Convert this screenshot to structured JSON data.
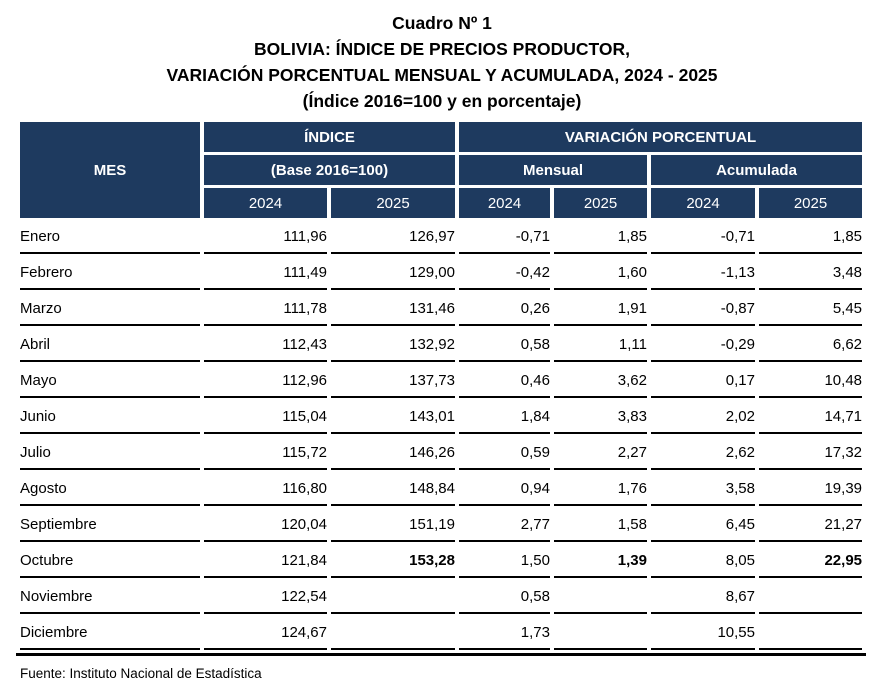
{
  "title": {
    "line1": "Cuadro Nº 1",
    "line2": "BOLIVIA: ÍNDICE DE PRECIOS PRODUCTOR,",
    "line3": "VARIACIÓN PORCENTUAL MENSUAL Y ACUMULADA, 2024 - 2025",
    "line4": "(Índice 2016=100 y en porcentaje)"
  },
  "table": {
    "headers": {
      "mes": "MES",
      "indice": "ÍNDICE",
      "indice_sub": "(Base 2016=100)",
      "variacion": "VARIACIÓN PORCENTUAL",
      "mensual": "Mensual",
      "acumulada": "Acumulada",
      "year_indice_2024": "2024",
      "year_indice_2025": "2025",
      "year_mensual_2024": "2024",
      "year_mensual_2025": "2025",
      "year_acumulada_2024": "2024",
      "year_acumulada_2025": "2025"
    },
    "rows": [
      {
        "mes": "Enero",
        "indice_2024": "111,96",
        "indice_2025": "126,97",
        "mensual_2024": "-0,71",
        "mensual_2025": "1,85",
        "acumulada_2024": "-0,71",
        "acumulada_2025": "1,85",
        "bold": []
      },
      {
        "mes": "Febrero",
        "indice_2024": "111,49",
        "indice_2025": "129,00",
        "mensual_2024": "-0,42",
        "mensual_2025": "1,60",
        "acumulada_2024": "-1,13",
        "acumulada_2025": "3,48",
        "bold": []
      },
      {
        "mes": "Marzo",
        "indice_2024": "111,78",
        "indice_2025": "131,46",
        "mensual_2024": "0,26",
        "mensual_2025": "1,91",
        "acumulada_2024": "-0,87",
        "acumulada_2025": "5,45",
        "bold": []
      },
      {
        "mes": "Abril",
        "indice_2024": "112,43",
        "indice_2025": "132,92",
        "mensual_2024": "0,58",
        "mensual_2025": "1,11",
        "acumulada_2024": "-0,29",
        "acumulada_2025": "6,62",
        "bold": []
      },
      {
        "mes": "Mayo",
        "indice_2024": "112,96",
        "indice_2025": "137,73",
        "mensual_2024": "0,46",
        "mensual_2025": "3,62",
        "acumulada_2024": "0,17",
        "acumulada_2025": "10,48",
        "bold": []
      },
      {
        "mes": "Junio",
        "indice_2024": "115,04",
        "indice_2025": "143,01",
        "mensual_2024": "1,84",
        "mensual_2025": "3,83",
        "acumulada_2024": "2,02",
        "acumulada_2025": "14,71",
        "bold": []
      },
      {
        "mes": "Julio",
        "indice_2024": "115,72",
        "indice_2025": "146,26",
        "mensual_2024": "0,59",
        "mensual_2025": "2,27",
        "acumulada_2024": "2,62",
        "acumulada_2025": "17,32",
        "bold": []
      },
      {
        "mes": "Agosto",
        "indice_2024": "116,80",
        "indice_2025": "148,84",
        "mensual_2024": "0,94",
        "mensual_2025": "1,76",
        "acumulada_2024": "3,58",
        "acumulada_2025": "19,39",
        "bold": []
      },
      {
        "mes": "Septiembre",
        "indice_2024": "120,04",
        "indice_2025": "151,19",
        "mensual_2024": "2,77",
        "mensual_2025": "1,58",
        "acumulada_2024": "6,45",
        "acumulada_2025": "21,27",
        "bold": []
      },
      {
        "mes": "Octubre",
        "indice_2024": "121,84",
        "indice_2025": "153,28",
        "mensual_2024": "1,50",
        "mensual_2025": "1,39",
        "acumulada_2024": "8,05",
        "acumulada_2025": "22,95",
        "bold": [
          "indice_2025",
          "mensual_2025",
          "acumulada_2025"
        ]
      },
      {
        "mes": "Noviembre",
        "indice_2024": "122,54",
        "indice_2025": "",
        "mensual_2024": "0,58",
        "mensual_2025": "",
        "acumulada_2024": "8,67",
        "acumulada_2025": "",
        "bold": []
      },
      {
        "mes": "Diciembre",
        "indice_2024": "124,67",
        "indice_2025": "",
        "mensual_2024": "1,73",
        "mensual_2025": "",
        "acumulada_2024": "10,55",
        "acumulada_2025": "",
        "bold": []
      }
    ]
  },
  "source_note": "Fuente: Instituto Nacional de Estadística",
  "colors": {
    "header_bg": "#1E3A5F",
    "header_text": "#FFFFFF",
    "body_text": "#000000",
    "row_border": "#000000"
  }
}
